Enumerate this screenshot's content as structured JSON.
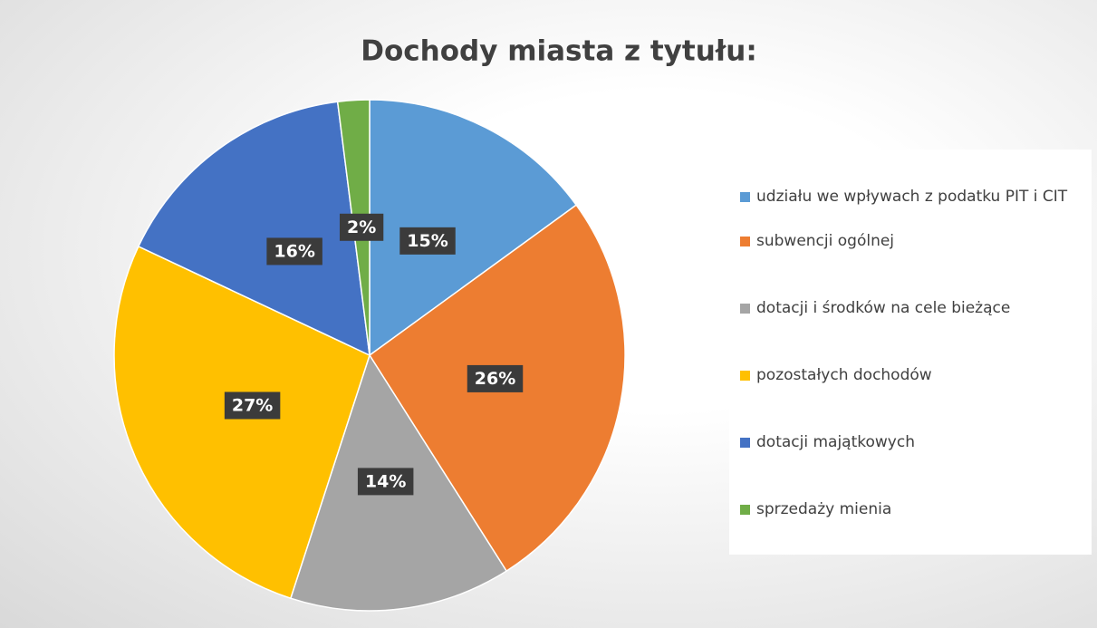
{
  "chart_data": {
    "type": "pie",
    "title": "Dochody miasta z tytułu:",
    "categories": [
      "udziału we wpływach z podatku PIT i CIT",
      "subwencji ogólnej",
      "dotacji i środków na cele bieżące",
      "pozostałych dochodów",
      "dotacji majątkowych",
      "sprzedaży mienia"
    ],
    "values": [
      15,
      26,
      14,
      27,
      16,
      2
    ],
    "value_labels": [
      "15%",
      "26%",
      "14%",
      "27%",
      "16%",
      "2%"
    ],
    "colors": [
      "#5b9bd5",
      "#ed7d31",
      "#a5a5a5",
      "#ffc000",
      "#4472c4",
      "#70ad47"
    ],
    "legend": "right"
  }
}
